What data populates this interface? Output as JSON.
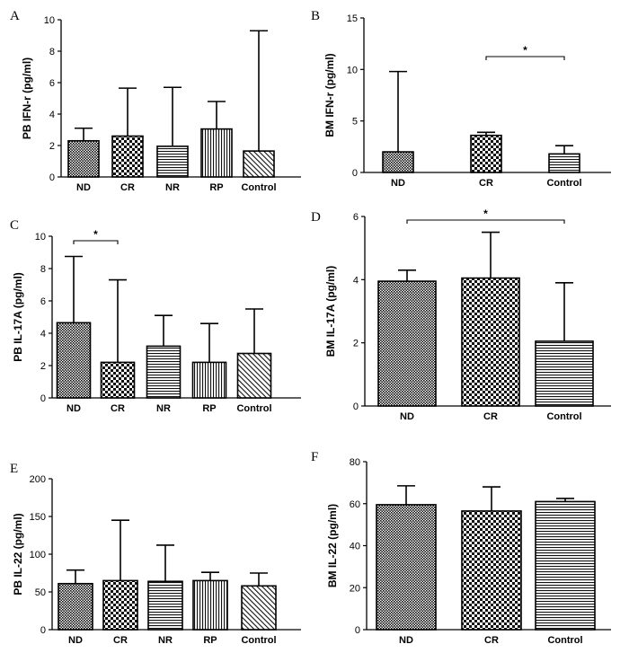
{
  "chart_data": [
    {
      "panel": "A",
      "type": "bar",
      "ylabel": "PB IFN-r (pg/ml)",
      "categories": [
        "ND",
        "CR",
        "NR",
        "RP",
        "Control"
      ],
      "values": [
        2.3,
        2.6,
        1.95,
        3.05,
        1.65
      ],
      "errors_upper": [
        3.1,
        5.65,
        5.7,
        4.8,
        9.3
      ],
      "patterns": [
        "dense-dots",
        "checker",
        "hlines",
        "vlines",
        "diagonal"
      ],
      "ylim": [
        0,
        10
      ],
      "yticks": [
        0,
        2,
        4,
        6,
        8,
        10
      ],
      "significance": []
    },
    {
      "panel": "B",
      "type": "bar",
      "ylabel": "BM IFN-r (pg/ml)",
      "categories": [
        "ND",
        "CR",
        "Control"
      ],
      "values": [
        2.0,
        3.6,
        1.8
      ],
      "errors_upper": [
        9.8,
        3.9,
        2.6
      ],
      "patterns": [
        "dense-dots",
        "checker",
        "hlines"
      ],
      "ylim": [
        0,
        15
      ],
      "yticks": [
        0,
        5,
        10,
        15
      ],
      "significance": [
        {
          "from": 1,
          "to": 2,
          "label": "*"
        }
      ]
    },
    {
      "panel": "C",
      "type": "bar",
      "ylabel": "PB IL-17A (pg/ml)",
      "categories": [
        "ND",
        "CR",
        "NR",
        "RP",
        "Control"
      ],
      "values": [
        4.65,
        2.2,
        3.2,
        2.2,
        2.75
      ],
      "errors_upper": [
        8.75,
        7.3,
        5.1,
        4.6,
        5.5
      ],
      "patterns": [
        "dense-dots",
        "checker",
        "hlines",
        "vlines",
        "diagonal"
      ],
      "ylim": [
        0,
        10
      ],
      "yticks": [
        0,
        2,
        4,
        6,
        8,
        10
      ],
      "significance": [
        {
          "from": 0,
          "to": 1,
          "label": "*"
        }
      ]
    },
    {
      "panel": "D",
      "type": "bar",
      "ylabel": "BM IL-17A (pg/ml)",
      "categories": [
        "ND",
        "CR",
        "Control"
      ],
      "values": [
        3.95,
        4.05,
        2.05
      ],
      "errors_upper": [
        4.3,
        5.5,
        3.9
      ],
      "patterns": [
        "dense-dots",
        "checker",
        "hlines"
      ],
      "ylim": [
        0,
        6
      ],
      "yticks": [
        0,
        2,
        4,
        6
      ],
      "significance": [
        {
          "from": 0,
          "to": 2,
          "label": "*"
        }
      ]
    },
    {
      "panel": "E",
      "type": "bar",
      "ylabel": "PB IL-22 (pg/ml)",
      "categories": [
        "ND",
        "CR",
        "NR",
        "RP",
        "Control"
      ],
      "values": [
        61,
        65,
        64,
        65,
        58
      ],
      "errors_upper": [
        79,
        145,
        112,
        76,
        75
      ],
      "patterns": [
        "dense-dots",
        "checker",
        "hlines",
        "vlines",
        "diagonal"
      ],
      "ylim": [
        0,
        200
      ],
      "yticks": [
        0,
        50,
        100,
        150,
        200
      ],
      "significance": []
    },
    {
      "panel": "F",
      "type": "bar",
      "ylabel": "BM IL-22 (pg/ml)",
      "categories": [
        "ND",
        "CR",
        "Control"
      ],
      "values": [
        59.5,
        56.5,
        61
      ],
      "errors_upper": [
        68.5,
        68,
        62.5
      ],
      "patterns": [
        "dense-dots",
        "checker",
        "hlines"
      ],
      "ylim": [
        0,
        80
      ],
      "yticks": [
        0,
        20,
        40,
        60,
        80
      ],
      "significance": []
    }
  ]
}
